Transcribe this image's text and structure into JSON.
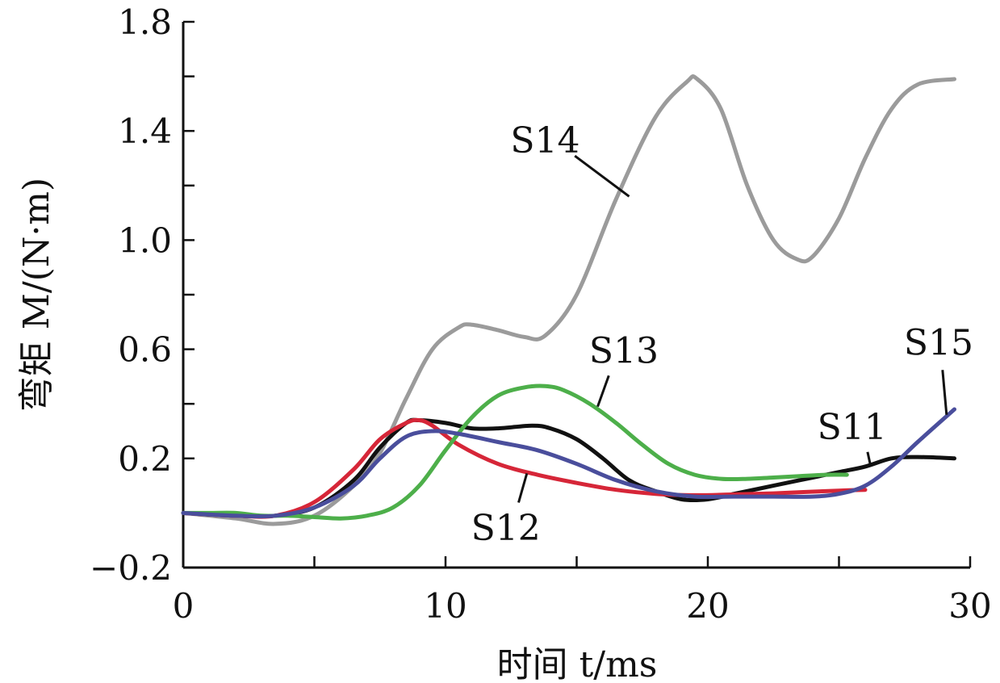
{
  "chart_data": {
    "type": "line",
    "xlabel": "时间 t/ms",
    "ylabel": "弯矩 M/(N·m)",
    "xlim": [
      0,
      30
    ],
    "ylim": [
      -0.2,
      1.8
    ],
    "xticks": [
      "0",
      "10",
      "20",
      "30"
    ],
    "yticks": [
      "-0.2",
      "0.2",
      "0.6",
      "1.0",
      "1.4",
      "1.8"
    ],
    "grid": false,
    "series": [
      {
        "name": "S14",
        "color": "#9b9b9b",
        "x": [
          0,
          2,
          3.5,
          5,
          6.5,
          7.5,
          8.5,
          9.5,
          10.5,
          11,
          12,
          13,
          13.8,
          15,
          16.5,
          18,
          19.2,
          19.6,
          20.5,
          21.5,
          22.5,
          23.4,
          24,
          25,
          26,
          27,
          28,
          29.4
        ],
        "y": [
          0.0,
          -0.02,
          -0.04,
          -0.01,
          0.1,
          0.22,
          0.42,
          0.6,
          0.68,
          0.69,
          0.67,
          0.645,
          0.65,
          0.8,
          1.15,
          1.45,
          1.58,
          1.59,
          1.48,
          1.2,
          1.0,
          0.93,
          0.94,
          1.08,
          1.3,
          1.48,
          1.57,
          1.59
        ]
      },
      {
        "name": "S11",
        "color": "#111111",
        "x": [
          0,
          2,
          3.5,
          5,
          6.5,
          7.5,
          8.5,
          9,
          10,
          11,
          12,
          13.3,
          14,
          15,
          16,
          17,
          18,
          19,
          20,
          21,
          22,
          23,
          24,
          25,
          26,
          27,
          28,
          29.4
        ],
        "y": [
          0.0,
          -0.01,
          -0.01,
          0.02,
          0.12,
          0.24,
          0.33,
          0.34,
          0.33,
          0.31,
          0.31,
          0.32,
          0.31,
          0.27,
          0.2,
          0.12,
          0.08,
          0.05,
          0.05,
          0.07,
          0.09,
          0.11,
          0.13,
          0.15,
          0.17,
          0.2,
          0.205,
          0.2
        ]
      },
      {
        "name": "S12",
        "color": "#d62638",
        "x": [
          0,
          2,
          3.5,
          5,
          6.5,
          7.5,
          8.5,
          9,
          9.5,
          10.5,
          12,
          13.5,
          15,
          16.5,
          18,
          19.5,
          21,
          22.5,
          24,
          25,
          26
        ],
        "y": [
          0.0,
          -0.01,
          -0.01,
          0.04,
          0.16,
          0.27,
          0.33,
          0.34,
          0.32,
          0.25,
          0.18,
          0.14,
          0.11,
          0.085,
          0.07,
          0.065,
          0.068,
          0.072,
          0.078,
          0.082,
          0.085
        ]
      },
      {
        "name": "S13",
        "color": "#4daf4a",
        "x": [
          0,
          1,
          2,
          3,
          4,
          5,
          6,
          7,
          8,
          9,
          10,
          11,
          12,
          13,
          13.8,
          14.5,
          15.5,
          16.5,
          17.5,
          18.5,
          19.5,
          20.5,
          21.5,
          22.5,
          23.5,
          24.5,
          25.3
        ],
        "y": [
          0.0,
          0.0,
          0.0,
          -0.01,
          -0.01,
          -0.015,
          -0.02,
          -0.01,
          0.02,
          0.1,
          0.23,
          0.35,
          0.43,
          0.46,
          0.465,
          0.45,
          0.4,
          0.33,
          0.25,
          0.18,
          0.14,
          0.125,
          0.125,
          0.13,
          0.135,
          0.14,
          0.14
        ]
      },
      {
        "name": "S15",
        "color": "#4a4e9c",
        "x": [
          0,
          2,
          3.5,
          5,
          6.5,
          7.5,
          8.5,
          9.5,
          10.5,
          12,
          13.5,
          15,
          16.5,
          18,
          19.5,
          21,
          22.5,
          24,
          25,
          26,
          27,
          28,
          29.4
        ],
        "y": [
          0.0,
          -0.01,
          -0.01,
          0.02,
          0.1,
          0.2,
          0.28,
          0.3,
          0.29,
          0.26,
          0.23,
          0.18,
          0.12,
          0.08,
          0.06,
          0.06,
          0.06,
          0.06,
          0.07,
          0.1,
          0.17,
          0.26,
          0.38
        ]
      }
    ],
    "annotations": [
      {
        "text": "S14",
        "series": "S14",
        "at_x": 17,
        "at_y": 1.16,
        "label_x": 13.8,
        "label_y": 1.32
      },
      {
        "text": "S13",
        "series": "S13",
        "at_x": 15.8,
        "at_y": 0.39,
        "label_x": 16.8,
        "label_y": 0.55
      },
      {
        "text": "S12",
        "series": "S12",
        "at_x": 13.1,
        "at_y": 0.145,
        "label_x": 12.3,
        "label_y": -0.1
      },
      {
        "text": "S11",
        "series": "S11",
        "at_x": 26.2,
        "at_y": 0.175,
        "label_x": 25.5,
        "label_y": 0.27
      },
      {
        "text": "S15",
        "series": "S15",
        "at_x": 29.1,
        "at_y": 0.36,
        "label_x": 28.8,
        "label_y": 0.58
      }
    ]
  }
}
